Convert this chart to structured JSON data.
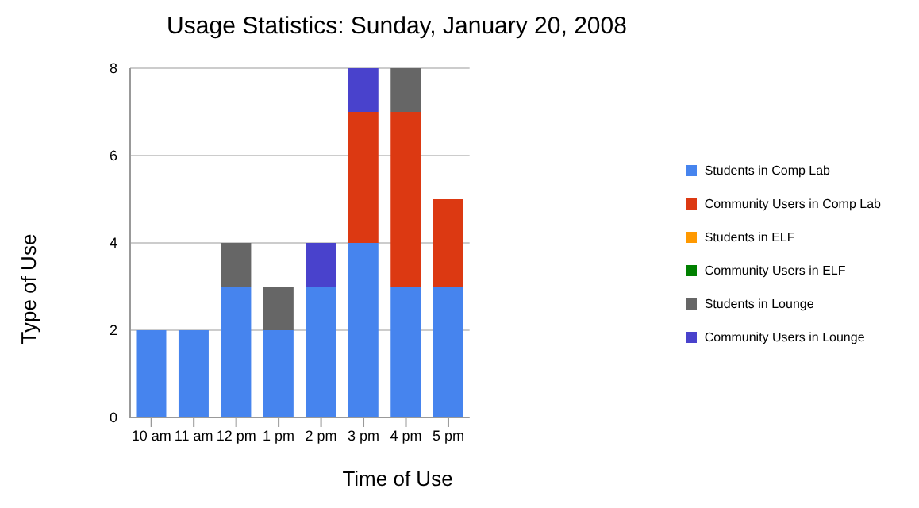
{
  "chart_data": {
    "type": "bar",
    "title": "Usage Statistics: Sunday, January 20, 2008",
    "xlabel": "Time of Use",
    "ylabel": "Type of Use",
    "categories": [
      "10 am",
      "11 am",
      "12 pm",
      "1 pm",
      "2 pm",
      "3 pm",
      "4 pm",
      "5 pm"
    ],
    "stacked": true,
    "ylim": [
      0,
      8
    ],
    "yticks": [
      0,
      2,
      4,
      6,
      8
    ],
    "grid": "y",
    "legend": "right",
    "series": [
      {
        "name": "Students in Comp Lab",
        "color": "#4684ee",
        "values": [
          2,
          2,
          3,
          2,
          3,
          4,
          3,
          3
        ]
      },
      {
        "name": "Community Users in Comp Lab",
        "color": "#dc3912",
        "values": [
          0,
          0,
          0,
          0,
          0,
          3,
          4,
          2
        ]
      },
      {
        "name": "Students in ELF",
        "color": "#ff9900",
        "values": [
          0,
          0,
          0,
          0,
          0,
          0,
          0,
          0
        ]
      },
      {
        "name": "Community Users in ELF",
        "color": "#008000",
        "values": [
          0,
          0,
          0,
          0,
          0,
          0,
          0,
          0
        ]
      },
      {
        "name": "Students in Lounge",
        "color": "#666666",
        "values": [
          0,
          0,
          1,
          1,
          0,
          0,
          1,
          0
        ]
      },
      {
        "name": "Community Users in Lounge",
        "color": "#4942cc",
        "values": [
          0,
          0,
          0,
          0,
          1,
          1,
          0,
          0
        ]
      }
    ]
  }
}
